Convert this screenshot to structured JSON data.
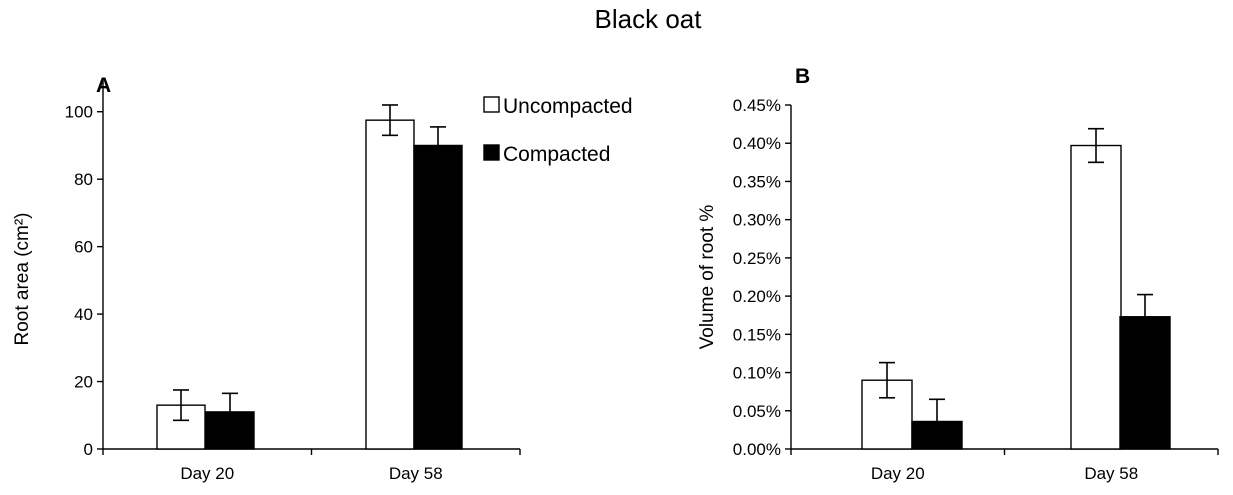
{
  "figure_title": "Black oat",
  "colors": {
    "uncompacted": "#ffffff",
    "compacted": "#000000",
    "stroke": "#000000"
  },
  "legend": [
    {
      "label": "Uncompacted",
      "color": "#ffffff"
    },
    {
      "label": "Compacted",
      "color": "#000000"
    }
  ],
  "chart_data": [
    {
      "type": "bar",
      "panel": "A",
      "title": "",
      "xlabel": "",
      "ylabel": "Root area (cm²)",
      "categories": [
        "Day 20",
        "Day 58"
      ],
      "ylim": [
        0,
        110
      ],
      "yticks": [
        0,
        20,
        40,
        60,
        80,
        100
      ],
      "ytick_labels": [
        "0",
        "20",
        "40",
        "60",
        "80",
        "100"
      ],
      "grid": false,
      "legend_position": "top-right",
      "series": [
        {
          "name": "Uncompacted",
          "values": [
            13,
            97.5
          ],
          "errors": [
            4.5,
            4.5
          ]
        },
        {
          "name": "Compacted",
          "values": [
            11,
            90
          ],
          "errors": [
            5.5,
            5.5
          ]
        }
      ]
    },
    {
      "type": "bar",
      "panel": "B",
      "title": "",
      "xlabel": "",
      "ylabel": "Volume of root %",
      "categories": [
        "Day 20",
        "Day 58"
      ],
      "ylim": [
        0,
        0.45
      ],
      "yticks": [
        0,
        0.05,
        0.1,
        0.15,
        0.2,
        0.25,
        0.3,
        0.35,
        0.4,
        0.45
      ],
      "ytick_labels": [
        "0.00%",
        "0.05%",
        "0.10%",
        "0.15%",
        "0.20%",
        "0.25%",
        "0.30%",
        "0.35%",
        "0.40%",
        "0.45%"
      ],
      "grid": false,
      "series": [
        {
          "name": "Uncompacted",
          "values": [
            0.09,
            0.397
          ],
          "errors": [
            0.023,
            0.022
          ]
        },
        {
          "name": "Compacted",
          "values": [
            0.036,
            0.173
          ],
          "errors": [
            0.029,
            0.029
          ]
        }
      ]
    }
  ]
}
